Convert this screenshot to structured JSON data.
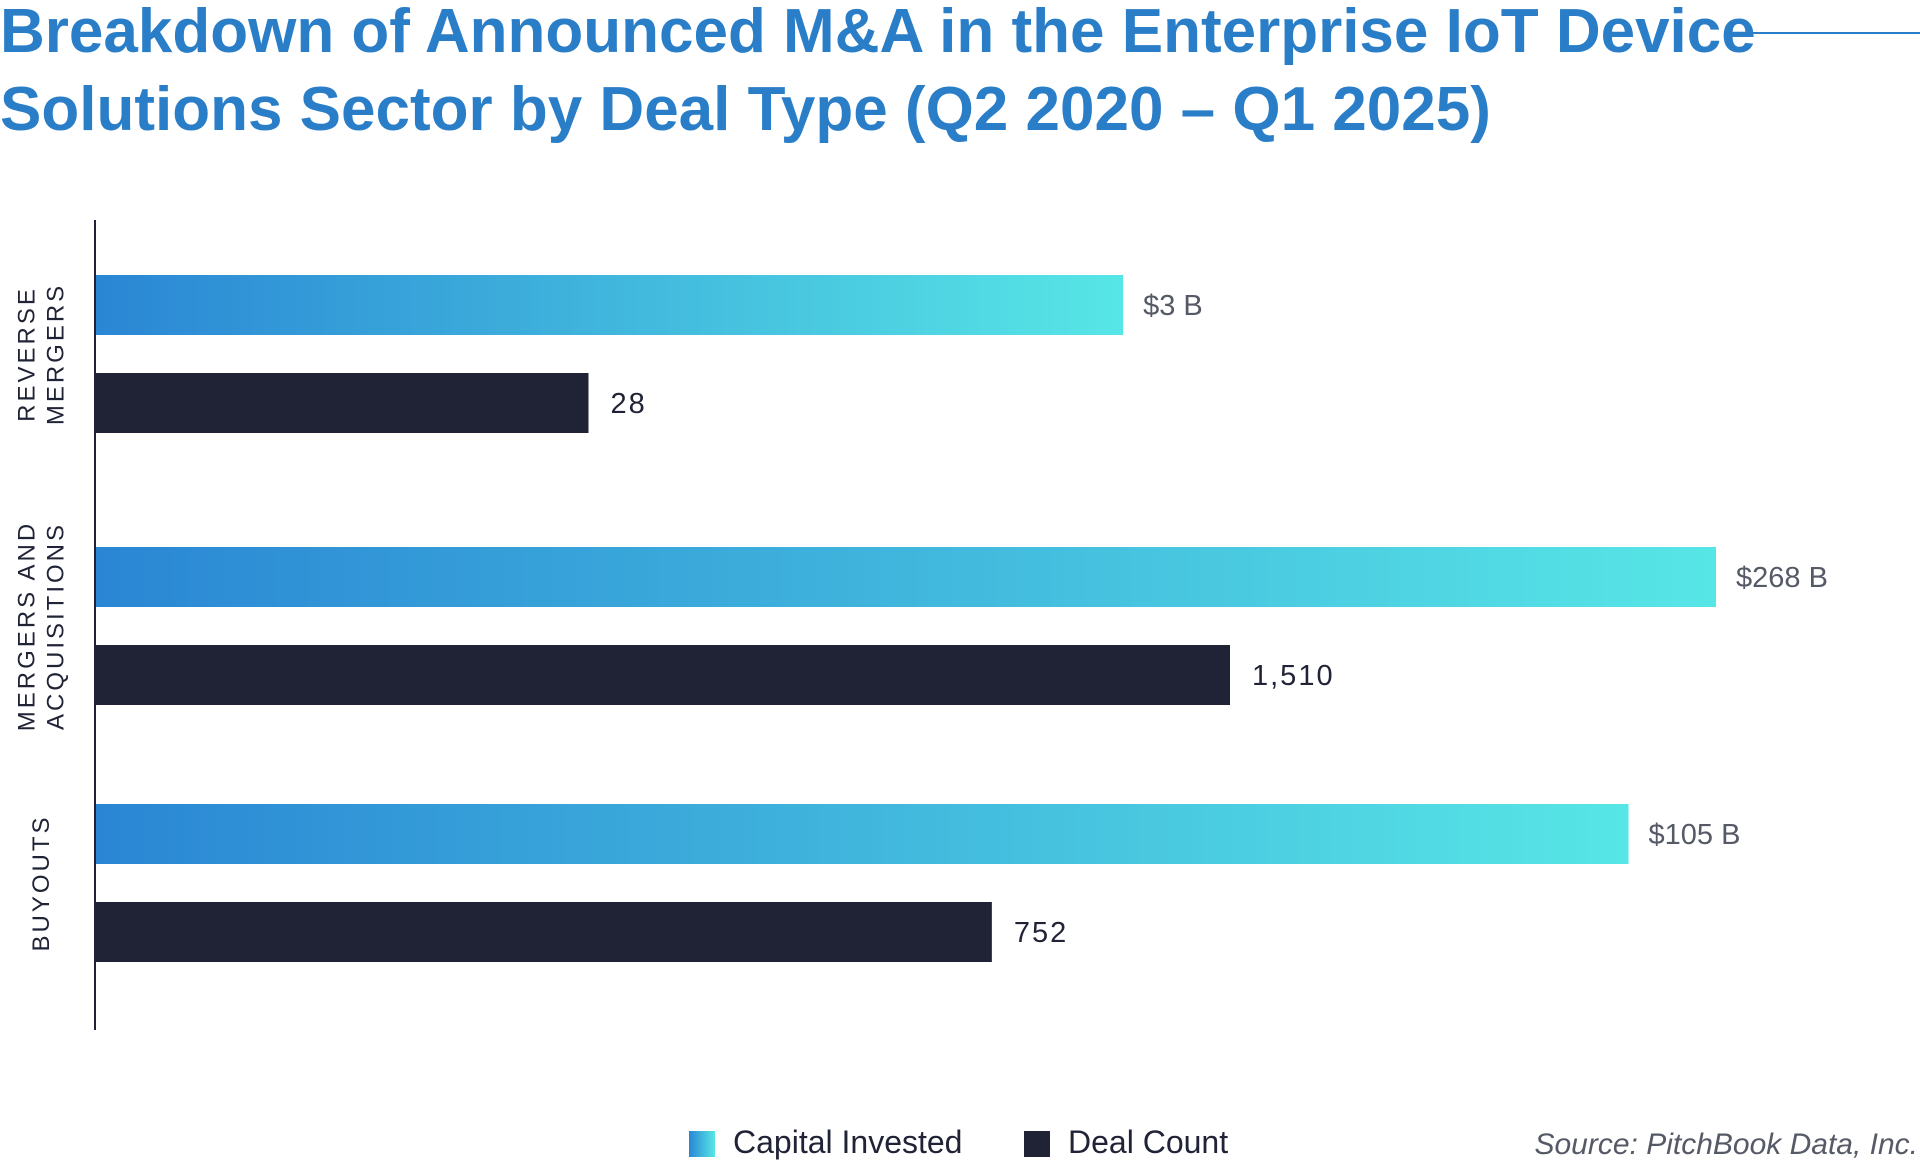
{
  "chart_data": {
    "type": "bar",
    "orientation": "horizontal",
    "title": "Breakdown of Announced M&A in the Enterprise IoT Device Solutions Sector by Deal Type (Q2 2020 – Q1 2025)",
    "title_lines": [
      "Breakdown of Announced M&A in the Enterprise IoT Device",
      "Solutions Sector by Deal Type (Q2 2020 – Q1 2025)"
    ],
    "categories": [
      "REVERSE MERGERS",
      "MERGERS AND ACQUISITIONS",
      "BUYOUTS"
    ],
    "category_lines": [
      [
        "REVERSE",
        "MERGERS"
      ],
      [
        "MERGERS AND",
        "ACQUISITIONS"
      ],
      [
        "BUYOUTS"
      ]
    ],
    "series": [
      {
        "name": "Capital Invested",
        "unit": "$B",
        "values": [
          3,
          268,
          105
        ],
        "labels": [
          "$3 B",
          "$268 B",
          "$105 B"
        ],
        "relative_bar_length": [
          0.634,
          1.0,
          0.946
        ],
        "color_start": "#2a86d4",
        "color_end": "#57e6e6",
        "label_color": "#555a66"
      },
      {
        "name": "Deal Count",
        "values": [
          28,
          1510,
          752
        ],
        "labels": [
          "28",
          "1,510",
          "752"
        ],
        "relative_bar_length": [
          0.304,
          0.7,
          0.553
        ],
        "color": "#1f2335",
        "label_color": "#1f2335"
      }
    ],
    "xlabel": "",
    "ylabel": "",
    "grid": false,
    "legend": "bottom-center",
    "source": "Source: PitchBook Data, Inc.",
    "colors": {
      "title": "#2a7ec8",
      "axis": "#1f2335"
    }
  }
}
